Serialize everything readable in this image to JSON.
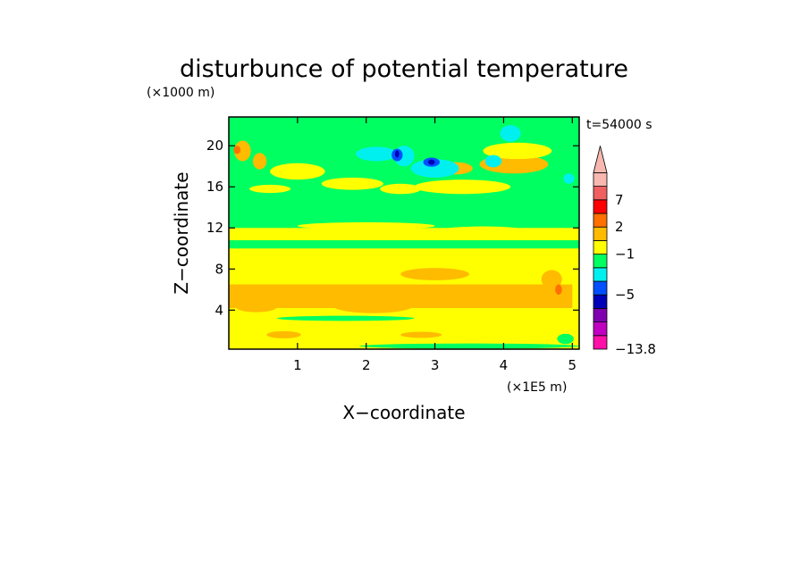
{
  "chart_data": {
    "type": "heatmap",
    "title": "disturbunce of potential temperature",
    "xlabel": "X−coordinate",
    "ylabel": "Z−coordinate",
    "x_unit": "(×1E5 m)",
    "y_unit": "(×1000 m)",
    "time_label": "t=54000 s",
    "xlim": [
      0,
      5.1
    ],
    "ylim": [
      0.2,
      22.8
    ],
    "x_ticks": [
      {
        "value": 1,
        "label": "1"
      },
      {
        "value": 2,
        "label": "2"
      },
      {
        "value": 3,
        "label": "3"
      },
      {
        "value": 4,
        "label": "4"
      },
      {
        "value": 5,
        "label": "5"
      }
    ],
    "y_ticks": [
      {
        "value": 4,
        "label": "4"
      },
      {
        "value": 8,
        "label": "8"
      },
      {
        "value": 12,
        "label": "12"
      },
      {
        "value": 16,
        "label": "16"
      },
      {
        "value": 20,
        "label": "20"
      }
    ],
    "colorbar": {
      "levels": [
        {
          "color": "#ff10a8"
        },
        {
          "color": "#c000c0"
        },
        {
          "color": "#8000b0"
        },
        {
          "color": "#0000b8"
        },
        {
          "color": "#0050ff"
        },
        {
          "color": "#00f0f0"
        },
        {
          "color": "#00ff60"
        },
        {
          "color": "#ffff00"
        },
        {
          "color": "#ffbb00"
        },
        {
          "color": "#ff7000"
        },
        {
          "color": "#ff0000"
        },
        {
          "color": "#f06060"
        },
        {
          "color": "#f8b8b0"
        }
      ],
      "labels": [
        {
          "value": "7",
          "index": 11
        },
        {
          "value": "2",
          "index": 9
        },
        {
          "value": "−1",
          "index": 7
        },
        {
          "value": "−5",
          "index": 4
        },
        {
          "value": "−13.8",
          "index": 0
        }
      ],
      "arrow_color": "#f8b8b0"
    },
    "field": {
      "background_color": "#ffff00",
      "bands": [
        {
          "name": "lower-orange-band",
          "color": "#ffbb00",
          "z": [
            4.2,
            6.5
          ],
          "x": [
            0.0,
            5.0
          ]
        },
        {
          "name": "upper-green-band",
          "color": "#00ff60",
          "z": [
            12.0,
            22.8
          ],
          "x": [
            0.0,
            5.1
          ]
        },
        {
          "name": "mid-green-strip",
          "color": "#00ff60",
          "z": [
            10.0,
            10.8
          ],
          "x": [
            0.0,
            5.1
          ]
        }
      ],
      "blobs": [
        {
          "color": "#ffbb00",
          "x": 0.2,
          "z": 19.5,
          "rx": 0.12,
          "rz": 1.0
        },
        {
          "color": "#ffbb00",
          "x": 0.45,
          "z": 18.5,
          "rx": 0.1,
          "rz": 0.8
        },
        {
          "color": "#ffbb00",
          "x": 4.15,
          "z": 18.2,
          "rx": 0.5,
          "rz": 0.9
        },
        {
          "color": "#ffbb00",
          "x": 3.3,
          "z": 17.8,
          "rx": 0.25,
          "rz": 0.6
        },
        {
          "color": "#ffbb00",
          "x": 2.1,
          "z": 4.5,
          "rx": 0.6,
          "rz": 0.8
        },
        {
          "color": "#ffbb00",
          "x": 3.0,
          "z": 7.5,
          "rx": 0.5,
          "rz": 0.6
        },
        {
          "color": "#ffbb00",
          "x": 0.4,
          "z": 4.3,
          "rx": 0.3,
          "rz": 0.5
        },
        {
          "color": "#ffbb00",
          "x": 4.7,
          "z": 7.0,
          "rx": 0.15,
          "rz": 0.9
        },
        {
          "color": "#ffbb00",
          "x": 0.8,
          "z": 1.6,
          "rx": 0.25,
          "rz": 0.35
        },
        {
          "color": "#ffbb00",
          "x": 2.8,
          "z": 1.6,
          "rx": 0.3,
          "rz": 0.3
        },
        {
          "color": "#ff7000",
          "x": 4.8,
          "z": 6.0,
          "rx": 0.05,
          "rz": 0.5
        },
        {
          "color": "#ff7000",
          "x": 0.12,
          "z": 19.6,
          "rx": 0.05,
          "rz": 0.4
        },
        {
          "color": "#ffff00",
          "x": 1.0,
          "z": 17.5,
          "rx": 0.4,
          "rz": 0.8
        },
        {
          "color": "#ffff00",
          "x": 1.8,
          "z": 16.3,
          "rx": 0.45,
          "rz": 0.6
        },
        {
          "color": "#ffff00",
          "x": 2.5,
          "z": 15.8,
          "rx": 0.3,
          "rz": 0.5
        },
        {
          "color": "#ffff00",
          "x": 0.6,
          "z": 15.8,
          "rx": 0.3,
          "rz": 0.4
        },
        {
          "color": "#ffff00",
          "x": 3.4,
          "z": 16.0,
          "rx": 0.7,
          "rz": 0.7
        },
        {
          "color": "#ffff00",
          "x": 4.2,
          "z": 19.5,
          "rx": 0.5,
          "rz": 0.8
        },
        {
          "color": "#ffff00",
          "x": 2.0,
          "z": 12.2,
          "rx": 1.0,
          "rz": 0.35
        },
        {
          "color": "#ffff00",
          "x": 3.7,
          "z": 11.8,
          "rx": 0.6,
          "rz": 0.35
        },
        {
          "color": "#00f0f0",
          "x": 2.15,
          "z": 19.2,
          "rx": 0.3,
          "rz": 0.7
        },
        {
          "color": "#00f0f0",
          "x": 2.55,
          "z": 19.0,
          "rx": 0.15,
          "rz": 1.0
        },
        {
          "color": "#00f0f0",
          "x": 3.0,
          "z": 17.8,
          "rx": 0.35,
          "rz": 0.9
        },
        {
          "color": "#00f0f0",
          "x": 4.1,
          "z": 21.2,
          "rx": 0.15,
          "rz": 0.8
        },
        {
          "color": "#00f0f0",
          "x": 3.85,
          "z": 18.5,
          "rx": 0.12,
          "rz": 0.6
        },
        {
          "color": "#00f0f0",
          "x": 4.95,
          "z": 16.8,
          "rx": 0.08,
          "rz": 0.5
        },
        {
          "color": "#0050ff",
          "x": 2.45,
          "z": 19.1,
          "rx": 0.08,
          "rz": 0.6
        },
        {
          "color": "#0050ff",
          "x": 2.95,
          "z": 18.4,
          "rx": 0.12,
          "rz": 0.45
        },
        {
          "color": "#0000b8",
          "x": 2.45,
          "z": 19.2,
          "rx": 0.03,
          "rz": 0.35
        },
        {
          "color": "#0000b8",
          "x": 2.95,
          "z": 18.4,
          "rx": 0.05,
          "rz": 0.25
        },
        {
          "color": "#00ff60",
          "x": 1.7,
          "z": 3.2,
          "rx": 1.0,
          "rz": 0.25
        },
        {
          "color": "#00ff60",
          "x": 3.5,
          "z": 0.5,
          "rx": 1.6,
          "rz": 0.25
        },
        {
          "color": "#00ff60",
          "x": 4.9,
          "z": 1.2,
          "rx": 0.12,
          "rz": 0.5
        }
      ]
    }
  }
}
